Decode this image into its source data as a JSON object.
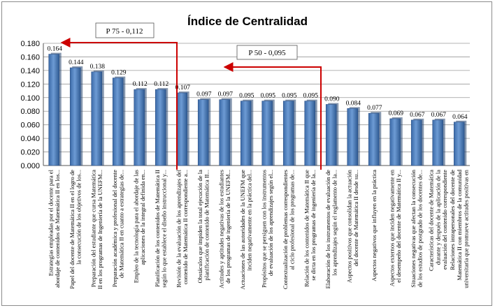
{
  "chart_data": {
    "type": "bar",
    "title": "Índice de Centralidad",
    "xlabel": "",
    "ylabel": "",
    "ylim": [
      0,
      0.18
    ],
    "yticks": [
      "0.000",
      "0.020",
      "0.040",
      "0.060",
      "0.080",
      "0.100",
      "0.120",
      "0.140",
      "0.160",
      "0.180"
    ],
    "grid": true,
    "legend": "none",
    "bar_color": "#4f81bd",
    "annotation_color": "#cc0000",
    "annotations": [
      {
        "text": "P 75 - 0,112",
        "value": 0.112
      },
      {
        "text": "P 50 - 0,095",
        "value": 0.095
      }
    ],
    "categories": [
      [
        "Estrategias empleadas por el docente para el",
        "abordaje de contenidos de Matemática II en los..."
      ],
      [
        "Papel del docente de Matemática II en el logro de",
        "la consecución de los objetivos de los..."
      ],
      [
        "Preparación del estudiante que cursa Matemática",
        "II en los programas de Ingeniería de la UNEFM..."
      ],
      [
        "Preparación académica y profesional del docente",
        "de Matemática II en cuanto a estrategias de..."
      ],
      [
        "Empleo de la tecnología para el abordaje de las",
        "aplicaciones de la integral definida en..."
      ],
      [
        "Planificación de los contenidos de Matemática II",
        "según lo que establece el diseño instruccional y..."
      ],
      [
        "Revisión de la evaluación de los aprendizajes del",
        "contenido de Matemática II correspondiente a..."
      ],
      [
        "Obstáculos que impiden la total ejecución de la",
        "planificación de contenido de Matemática II..."
      ],
      [
        "Actitudes y aptitudes negativas de los estudiantes",
        "de los programas de ingeniería de la UNEFM..."
      ],
      [
        "Actuaciones de las autoridades de la UNEFM que",
        "inciden negativamente en la práctica del..."
      ],
      [
        "Propósitos que se persiguen con los instrumentos",
        "de evaluación de los aprendizajes según el..."
      ],
      [
        "Contextualización de problemas correspondientes",
        "al ciclo profesional de los programas de..."
      ],
      [
        "Relación de los contenidos de Matemática II que",
        "se dicta en los programas de ingeniería de la..."
      ],
      [
        "Elaboración de los instrumentos de evaluación de",
        "los aprendizajes según el reglamento de la..."
      ],
      [
        "Aspectos positivos que consolidan la actuación",
        "del docente de Matemática II desde su..."
      ],
      [
        "Aspectos negativos que influyen en la práctica",
        ""
      ],
      [
        "Aspectos externos que inciden negativamente en",
        "el desempeño del docente de Matemática II y..."
      ],
      [
        "Situaciones negativas que afectan la consecución",
        "de los estudios de postgrado de los docentes de..."
      ],
      [
        "Características del docente de Matemática",
        "durante y después de la aplicación de la",
        "evaluación del contenido correspondiente"
      ],
      [
        "Relaciones intrapersonales del docente de",
        "Matemática II con miembros de la comunidad",
        "universitaria que promueve actitudes positivas en"
      ]
    ],
    "values": [
      0.164,
      0.144,
      0.138,
      0.129,
      0.112,
      0.112,
      0.107,
      0.097,
      0.097,
      0.095,
      0.095,
      0.095,
      0.095,
      0.09,
      0.084,
      0.077,
      0.069,
      0.067,
      0.067,
      0.064
    ],
    "value_labels": [
      "0.164",
      "0.144",
      "0.138",
      "0.129",
      "0.112",
      "0.112",
      "0.107",
      "0.097",
      "0.097",
      "0.095",
      "0.095",
      "0.095",
      "0.095",
      "0.090",
      "0.084",
      "0.077",
      "0.069",
      "0.067",
      "0.067",
      "0.064"
    ]
  }
}
